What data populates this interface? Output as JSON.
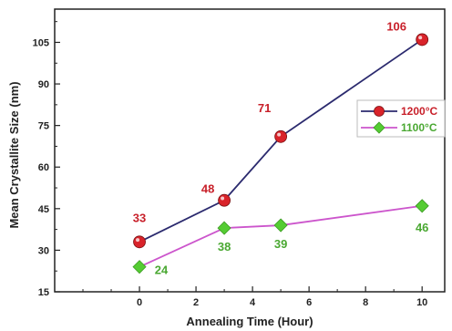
{
  "chart_data": {
    "type": "line",
    "xlabel": "Annealing Time (Hour)",
    "ylabel": "Mean Crystallite Size (nm)",
    "xlim": [
      -3,
      10.8
    ],
    "ylim": [
      15,
      117
    ],
    "x_ticks": [
      0,
      2,
      4,
      6,
      8,
      10
    ],
    "y_ticks": [
      15,
      30,
      45,
      60,
      75,
      90,
      105
    ],
    "grid": false,
    "legend_position": "right",
    "series": [
      {
        "name": "1200°C",
        "x": [
          0,
          3,
          5,
          10
        ],
        "values": [
          33,
          48,
          71,
          106
        ],
        "labels": [
          "33",
          "48",
          "71",
          "106"
        ],
        "line_color": "#2b2a6e",
        "marker": "circle",
        "marker_color": "#d9232a",
        "label_color": "#c8202a"
      },
      {
        "name": "1100°C",
        "x": [
          0,
          3,
          5,
          10
        ],
        "values": [
          24,
          38,
          39,
          46
        ],
        "labels": [
          "24",
          "38",
          "39",
          "46"
        ],
        "line_color": "#cc55cc",
        "marker": "diamond",
        "marker_color": "#55cc33",
        "label_color": "#4aa832"
      }
    ]
  }
}
